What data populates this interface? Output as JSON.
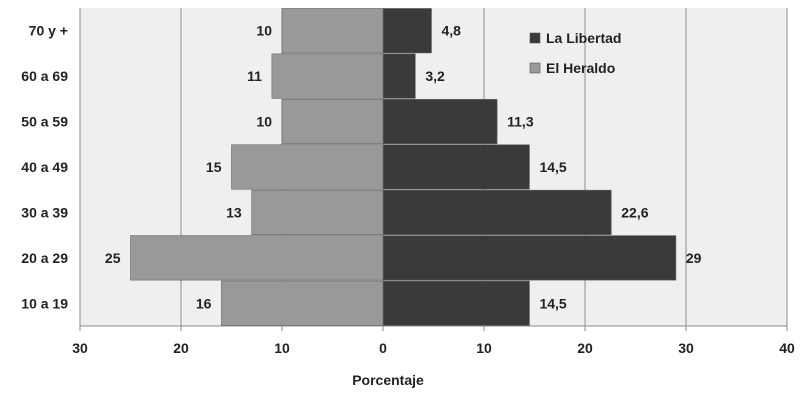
{
  "chart_data": {
    "type": "bar",
    "orientation": "horizontal",
    "layout": "population-pyramid",
    "categories": [
      "10 a 19",
      "20 a 29",
      "30 a 39",
      "40 a 49",
      "50 a 59",
      "60 a 69",
      "70 y +"
    ],
    "series": [
      {
        "name": "La Libertad",
        "color": "#3a3a3a",
        "direction": "right",
        "values": [
          14.5,
          29,
          22.6,
          14.5,
          11.3,
          3.2,
          4.8
        ],
        "value_labels": [
          "14,5",
          "29",
          "22,6",
          "14,5",
          "11,3",
          "3,2",
          "4,8"
        ]
      },
      {
        "name": "El Heraldo",
        "color": "#999999",
        "direction": "left",
        "values": [
          16,
          25,
          13,
          15,
          10,
          11,
          10
        ],
        "value_labels": [
          "16",
          "25",
          "13",
          "15",
          "10",
          "11",
          "10"
        ]
      }
    ],
    "xlim": [
      -30,
      40
    ],
    "xticks": [
      -30,
      -20,
      -10,
      0,
      10,
      20,
      30,
      40
    ],
    "xtick_labels": [
      "30",
      "20",
      "10",
      "0",
      "10",
      "20",
      "30",
      "40"
    ],
    "xlabel": "Porcentaje",
    "ylabel": "",
    "title": "",
    "grid": "vertical",
    "legend_position": "top-right",
    "colors": {
      "plot_background": "#efefef",
      "gridline": "#8c8c8c",
      "axis": "#8c8c8c"
    }
  }
}
